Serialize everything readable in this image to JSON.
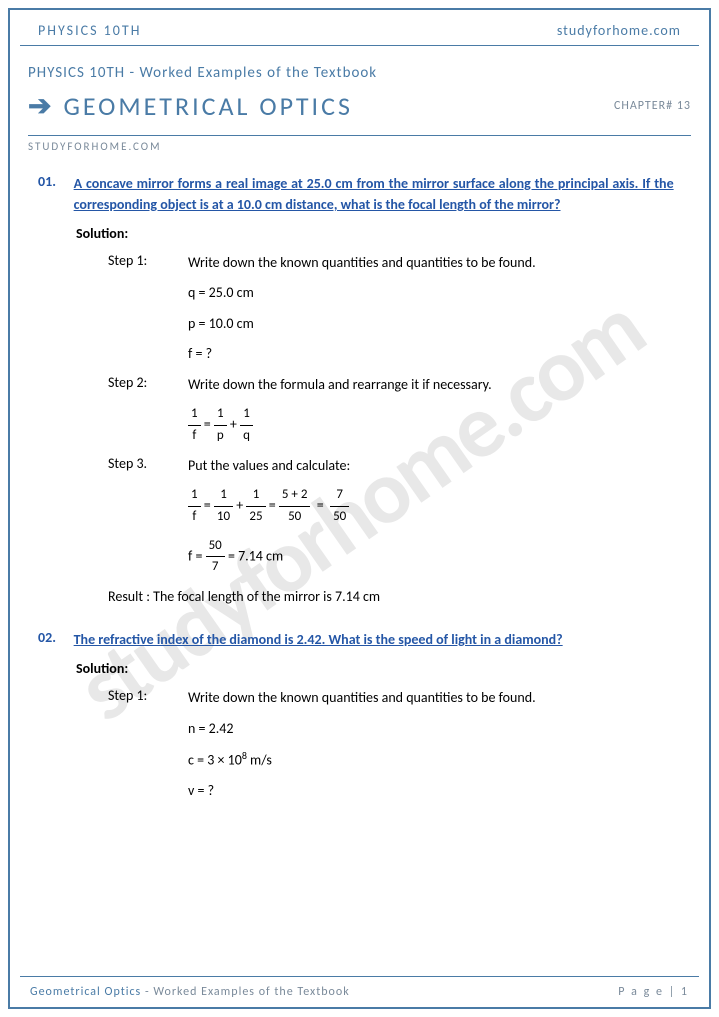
{
  "topbar": {
    "left": "PHYSICS 10TH",
    "right": "studyforhome.com"
  },
  "header": {
    "subtitle": "PHYSICS 10TH - Worked Examples of the Textbook",
    "title": "GEOMETRICAL OPTICS",
    "chapter": "CHAPTER# 13",
    "site": "STUDYFORHOME.COM"
  },
  "watermark": "studyforhome.com",
  "q1": {
    "num": "01.",
    "text": "A concave mirror forms a real image at 25.0 cm from the mirror surface along the principal axis. If the corresponding object is at a 10.0 cm distance, what is the focal length of the mirror?",
    "sol": "Solution:",
    "s1l": "Step 1:",
    "s1t": "Write down the known quantities and quantities to be found.",
    "e1": "q = 25.0 cm",
    "e2": "p = 10.0 cm",
    "e3": "f = ?",
    "s2l": "Step 2:",
    "s2t": "Write down the formula and rearrange it if necessary.",
    "s3l": "Step 3.",
    "s3t": "Put the values and calculate:",
    "e6": "= 7.14 cm",
    "result": "Result : The focal length of the mirror is 7.14 cm"
  },
  "q2": {
    "num": "02.",
    "text": "The refractive index of the diamond is 2.42. What is the speed of light in a diamond?",
    "sol": "Solution:",
    "s1l": "Step 1:",
    "s1t": "Write down the known quantities and quantities to be found.",
    "e1": "n = 2.42",
    "e2a": "c = 3 × 10",
    "e2b": " m/s",
    "e3": "v = ?"
  },
  "footer": {
    "left1": "Geometrical Optics",
    "left2": " - Worked Examples of the Textbook",
    "right": "P a g e | 1"
  }
}
